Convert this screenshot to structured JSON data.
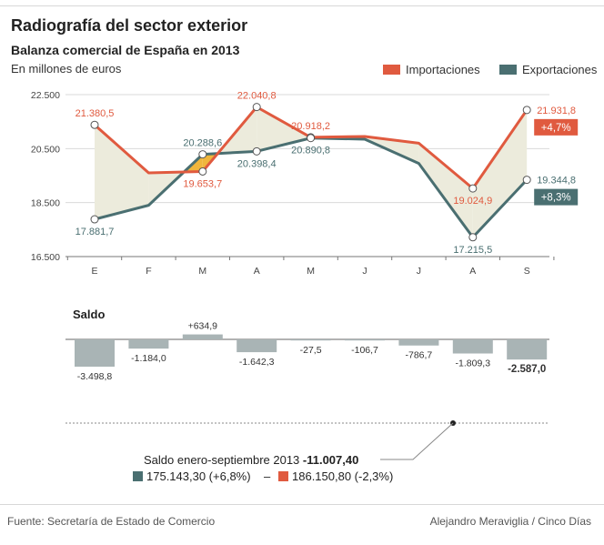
{
  "header": {
    "title": "Radiografía del sector exterior",
    "subtitle": "Balanza comercial de España en 2013",
    "units": "En millones de euros"
  },
  "legend": {
    "imports_label": "Importaciones",
    "exports_label": "Exportaciones"
  },
  "colors": {
    "imports": "#e05a3f",
    "exports": "#4a6f71",
    "gap_fill": "#ecebdc",
    "gap_fill_alt": "#f0b63c",
    "balance_bar": "#a9b4b5"
  },
  "chart_data": [
    {
      "type": "line",
      "categories": [
        "E",
        "F",
        "M",
        "A",
        "M",
        "J",
        "J",
        "A",
        "S"
      ],
      "ylim": [
        16500,
        22500
      ],
      "yticks": [
        16500,
        18500,
        20500,
        22500
      ],
      "ytick_labels": [
        "16.500",
        "18.500",
        "20.500",
        "22.500"
      ],
      "series": [
        {
          "name": "Importaciones",
          "values": [
            21380.5,
            19600,
            19653.7,
            22040.8,
            20918.2,
            20950,
            20700,
            19024.9,
            21931.8
          ]
        },
        {
          "name": "Exportaciones",
          "values": [
            17881.7,
            18400,
            20288.6,
            20398.4,
            20890.8,
            20850,
            19950,
            17215.5,
            19344.8
          ]
        }
      ],
      "annotations": [
        {
          "series": "Importaciones",
          "index": 0,
          "label": "21.380,5",
          "pos": "above"
        },
        {
          "series": "Exportaciones",
          "index": 0,
          "label": "17.881,7",
          "pos": "below"
        },
        {
          "series": "Exportaciones",
          "index": 2,
          "label": "20.288,6",
          "pos": "above"
        },
        {
          "series": "Importaciones",
          "index": 2,
          "label": "19.653,7",
          "pos": "below"
        },
        {
          "series": "Importaciones",
          "index": 3,
          "label": "22.040,8",
          "pos": "above"
        },
        {
          "series": "Exportaciones",
          "index": 3,
          "label": "20.398,4",
          "pos": "below"
        },
        {
          "series": "Importaciones",
          "index": 4,
          "label": "20.918,2",
          "pos": "above"
        },
        {
          "series": "Exportaciones",
          "index": 4,
          "label": "20.890,8",
          "pos": "below"
        },
        {
          "series": "Importaciones",
          "index": 7,
          "label": "19.024,9",
          "pos": "below"
        },
        {
          "series": "Exportaciones",
          "index": 7,
          "label": "17.215,5",
          "pos": "below"
        },
        {
          "series": "Importaciones",
          "index": 8,
          "label": "21.931,8",
          "pos": "right"
        },
        {
          "series": "Exportaciones",
          "index": 8,
          "label": "19.344,8",
          "pos": "right"
        }
      ],
      "marked_points": [
        0,
        2,
        3,
        4,
        7,
        8
      ],
      "change_badges": [
        {
          "series": "Importaciones",
          "label": "+4,7%"
        },
        {
          "series": "Exportaciones",
          "label": "+8,3%"
        }
      ]
    },
    {
      "type": "bar",
      "title": "Saldo",
      "categories": [
        "E",
        "F",
        "M",
        "A",
        "M",
        "J",
        "J",
        "A",
        "S"
      ],
      "values": [
        -3498.8,
        -1184.0,
        634.9,
        -1642.3,
        -27.5,
        -106.7,
        -786.7,
        -1809.3,
        -2587.0
      ],
      "labels": [
        "-3.498,8",
        "-1.184,0",
        "+634,9",
        "-1.642,3",
        "-27,5",
        "-106,7",
        "-786,7",
        "-1.809,3",
        "-2.587,0"
      ],
      "bold_label_index": 8
    }
  ],
  "summary": {
    "balance_label": "Saldo enero-septiembre 2013",
    "balance_value": "-11.007,40",
    "exports_total": "175.143,30 (+6,8%)",
    "separator": "–",
    "imports_total": "186.150,80 (-2,3%)"
  },
  "footer": {
    "source": "Fuente: Secretaría de Estado de Comercio",
    "author": "Alejandro Meraviglia / Cinco Días"
  }
}
